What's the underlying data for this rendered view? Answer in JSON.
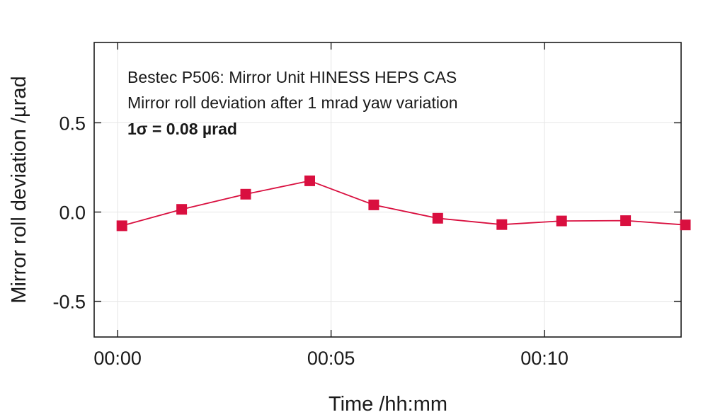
{
  "chart_data": {
    "type": "line",
    "annotations": [
      "Bestec P506: Mirror Unit HINESS HEPS CAS",
      "Mirror roll deviation after 1 mrad yaw variation",
      "1σ = 0.08 µrad"
    ],
    "xlabel": "Time /hh:mm",
    "ylabel": "Mirror roll deviation /µrad",
    "x_tick_labels": [
      "00:00",
      "00:05",
      "00:10"
    ],
    "x_ticks_minutes": [
      0,
      5,
      10
    ],
    "y_tick_labels": [
      "0.5",
      "0.0",
      "-0.5"
    ],
    "y_ticks": [
      0.5,
      0.0,
      -0.5
    ],
    "xlim_minutes": [
      -0.55,
      13.2
    ],
    "ylim": [
      -0.7,
      0.95
    ],
    "grid": true,
    "series": [
      {
        "color": "#d90f3f",
        "marker": "square",
        "x_minutes": [
          0.1,
          1.5,
          3.0,
          4.5,
          6.0,
          7.5,
          9.0,
          10.4,
          11.9,
          13.3
        ],
        "y": [
          -0.077,
          0.015,
          0.1,
          0.175,
          0.04,
          -0.035,
          -0.07,
          -0.05,
          -0.048,
          -0.072
        ]
      }
    ]
  }
}
